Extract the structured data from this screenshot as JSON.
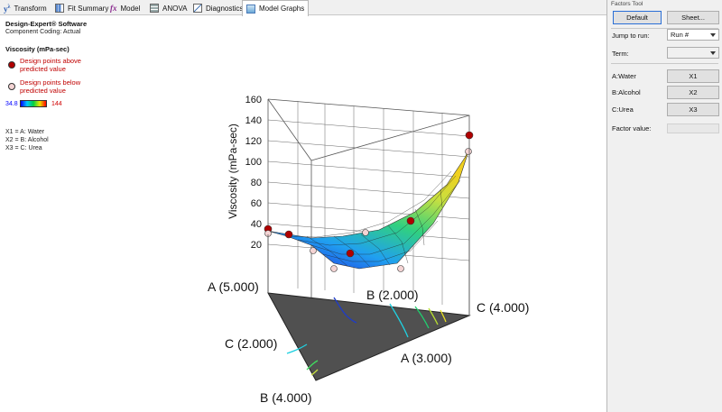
{
  "tabs": [
    {
      "label": "Transform",
      "icon": "transform-icon",
      "active": false
    },
    {
      "label": "Fit Summary",
      "icon": "fit-summary-icon",
      "active": false
    },
    {
      "label": "Model",
      "icon": "model-fx-icon",
      "active": false
    },
    {
      "label": "ANOVA",
      "icon": "anova-icon",
      "active": false
    },
    {
      "label": "Diagnostics",
      "icon": "diagnostics-icon",
      "active": false
    },
    {
      "label": "Model Graphs",
      "icon": "model-graphs-icon",
      "active": true
    }
  ],
  "legend": {
    "software": "Design-Expert® Software",
    "coding": "Component Coding: Actual",
    "response": "Viscosity (mPa-sec)",
    "above_line1": "Design points above",
    "above_line2": "predicted value",
    "below_line1": "Design points below",
    "below_line2": "predicted value",
    "range_low": "34.8",
    "range_high": "144",
    "x1": "X1 = A: Water",
    "x2": "X2 = B: Alcohol",
    "x3": "X3 = C: Urea"
  },
  "colors": {
    "above_point": "#b00000",
    "below_point": "#f4d4d4",
    "low": "#0000ff",
    "high": "#ff0000",
    "accent": "#2a6fd6"
  },
  "chart_data": {
    "type": "surface",
    "zlabel": "Viscosity (mPa-sec)",
    "z_ticks": [
      "20",
      "40",
      "60",
      "80",
      "100",
      "120",
      "140",
      "160"
    ],
    "corners": {
      "a_top": "A (5.000)",
      "b_mid": "B (2.000)",
      "c_right": "C (4.000)",
      "c_left": "C (2.000)",
      "a_right": "A (3.000)",
      "b_bottom": "B (4.000)"
    },
    "zlim": [
      20,
      160
    ]
  },
  "panel": {
    "title": "Factors Tool",
    "default_btn": "Default",
    "sheet_btn": "Sheet...",
    "jump_label": "Jump to run:",
    "jump_value": "Run #",
    "term_label": "Term:",
    "term_value": "",
    "factors": [
      {
        "label": "A:Water",
        "btn": "X1"
      },
      {
        "label": "B:Alcohol",
        "btn": "X2"
      },
      {
        "label": "C:Urea",
        "btn": "X3"
      }
    ],
    "factor_value_label": "Factor value:"
  }
}
